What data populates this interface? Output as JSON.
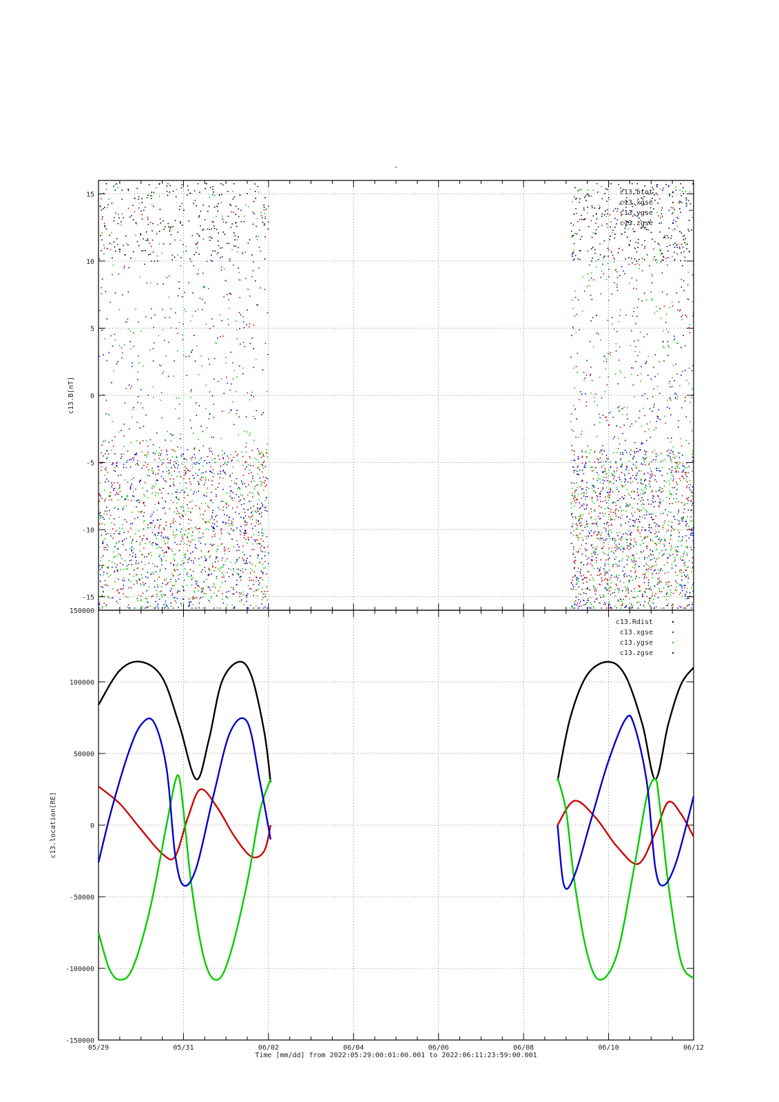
{
  "title": "-",
  "x_axis_label": "Time [mm/dd]  from 2022:05:29:00:01:00.001  to  2022:06:11:23:59:00.001",
  "chart_data": [
    {
      "type": "scatter",
      "name": "magnetic-field-panel",
      "ylabel": "c13.B[nT]",
      "xlabel": "",
      "xlim": [
        0,
        14
      ],
      "ylim": [
        -16,
        16
      ],
      "x_ticks": [
        0,
        2,
        4,
        6,
        8,
        10,
        12,
        14
      ],
      "x_tick_labels": [
        "05/29",
        "05/31",
        "06/02",
        "06/04",
        "06/06",
        "06/08",
        "06/10",
        "06/12"
      ],
      "y_ticks": [
        -15,
        -10,
        -5,
        0,
        5,
        10,
        15
      ],
      "y_tick_labels": [
        "-15",
        "-10",
        "-5",
        "0",
        "5",
        "10",
        "15"
      ],
      "grid": true,
      "legend_position": "top-right",
      "data_intervals_days": [
        [
          0,
          4
        ],
        [
          11.1,
          14
        ]
      ],
      "series": [
        {
          "name": "c13.btot",
          "color": "#000000",
          "y_range": [
            10,
            16
          ]
        },
        {
          "name": "c13.xgse",
          "color": "#cc0000",
          "y_range": [
            -15,
            15
          ]
        },
        {
          "name": "c13.ygse",
          "color": "#00cc00",
          "y_range": [
            -15,
            16
          ]
        },
        {
          "name": "c13.zgse",
          "color": "#0000cc",
          "y_range": [
            -16,
            16
          ]
        }
      ]
    },
    {
      "type": "line",
      "name": "location-panel",
      "ylabel": "c13.location[RE]",
      "xlabel": "",
      "xlim": [
        0,
        14
      ],
      "ylim": [
        -150000,
        150000
      ],
      "x_ticks": [
        0,
        2,
        4,
        6,
        8,
        10,
        12,
        14
      ],
      "x_tick_labels": [
        "05/29",
        "05/31",
        "06/02",
        "06/04",
        "06/06",
        "06/08",
        "06/10",
        "06/12"
      ],
      "y_ticks": [
        -150000,
        -100000,
        -50000,
        0,
        50000,
        100000,
        150000
      ],
      "y_tick_labels": [
        "-150000",
        "-100000",
        "-50000",
        "0",
        "50000",
        "100000",
        "150000"
      ],
      "grid": true,
      "legend_position": "top-right",
      "series": [
        {
          "name": "c13.Rdist",
          "color": "#000000",
          "segments": [
            {
              "x": [
                0,
                0.5,
                1.0,
                1.5,
                1.9,
                2.3,
                2.6,
                2.9,
                3.3,
                3.6,
                3.9,
                4.05
              ],
              "y": [
                84000,
                108000,
                114000,
                103000,
                70000,
                32000,
                60000,
                100000,
                114000,
                104000,
                65000,
                30000
              ]
            },
            {
              "x": [
                10.8,
                11.1,
                11.5,
                12.0,
                12.4,
                12.8,
                13.1,
                13.4,
                13.7,
                14.0
              ],
              "y": [
                31000,
                75000,
                105000,
                114000,
                104000,
                70000,
                32000,
                70000,
                98000,
                110000
              ]
            }
          ]
        },
        {
          "name": "c13.xgse",
          "color": "#cc0000",
          "segments": [
            {
              "x": [
                0,
                0.5,
                1.0,
                1.5,
                1.8,
                2.1,
                2.4,
                2.8,
                3.2,
                3.6,
                3.9,
                4.05
              ],
              "y": [
                27000,
                15000,
                -3000,
                -20000,
                -22000,
                5000,
                25000,
                12000,
                -8000,
                -22000,
                -18000,
                0
              ]
            },
            {
              "x": [
                10.8,
                11.2,
                11.7,
                12.2,
                12.7,
                13.1,
                13.4,
                13.7,
                14.0
              ],
              "y": [
                0,
                17000,
                5000,
                -15000,
                -27000,
                -5000,
                16000,
                8000,
                -8000
              ]
            }
          ]
        },
        {
          "name": "c13.ygse",
          "color": "#00cc00",
          "segments": [
            {
              "x": [
                0,
                0.25,
                0.5,
                0.8,
                1.2,
                1.6,
                1.8,
                1.9,
                2.0,
                2.2,
                2.5,
                2.8,
                3.1,
                3.5,
                3.8,
                4.05
              ],
              "y": [
                -75000,
                -100000,
                -108000,
                -100000,
                -60000,
                0,
                30000,
                33000,
                10000,
                -45000,
                -95000,
                -108000,
                -90000,
                -40000,
                10000,
                32000
              ]
            },
            {
              "x": [
                10.8,
                11.0,
                11.2,
                11.5,
                11.8,
                12.2,
                12.6,
                12.9,
                13.1,
                13.2,
                13.4,
                13.7,
                14.0
              ],
              "y": [
                33000,
                10000,
                -40000,
                -90000,
                -108000,
                -90000,
                -30000,
                20000,
                32000,
                15000,
                -40000,
                -95000,
                -107000
              ]
            }
          ]
        },
        {
          "name": "c13.zgse",
          "color": "#0000cc",
          "segments": [
            {
              "x": [
                0,
                0.3,
                0.7,
                1.0,
                1.3,
                1.6,
                1.8,
                2.0,
                2.3,
                2.7,
                3.1,
                3.5,
                3.8,
                4.05
              ],
              "y": [
                -26000,
                10000,
                50000,
                70000,
                72000,
                40000,
                -20000,
                -42000,
                -30000,
                20000,
                65000,
                72000,
                30000,
                -10000
              ]
            },
            {
              "x": [
                10.8,
                10.95,
                11.2,
                11.6,
                12.0,
                12.4,
                12.6,
                12.9,
                13.1,
                13.3,
                13.6,
                14.0
              ],
              "y": [
                0,
                -42000,
                -35000,
                5000,
                45000,
                74000,
                70000,
                30000,
                -30000,
                -42000,
                -25000,
                20000
              ]
            }
          ]
        }
      ]
    }
  ]
}
